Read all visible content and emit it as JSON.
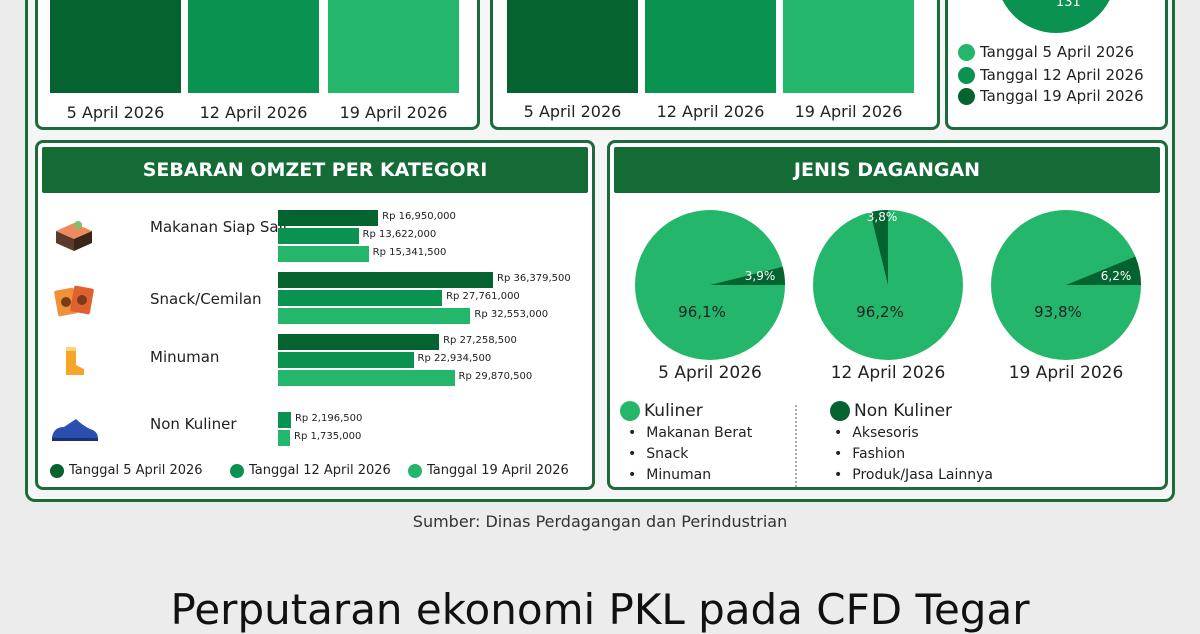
{
  "colors": {
    "dark": "#05632f",
    "mid": "#0a9350",
    "light": "#24b76b",
    "header": "#146b35"
  },
  "top_left_chart": {
    "labels": [
      "5 April 2026",
      "12 April 2026",
      "19 April 2026"
    ]
  },
  "top_mid_chart": {
    "labels": [
      "5 April 2026",
      "12 April 2026",
      "19 April 2026"
    ]
  },
  "top_right_chart": {
    "visible_value": "131",
    "legend": [
      "Tanggal 5 April 2026",
      "Tanggal 12 April 2026",
      "Tanggal 19 April 2026"
    ]
  },
  "chart_data": [
    {
      "type": "bar",
      "orientation": "horizontal",
      "title": "SEBARAN OMZET PER KATEGORI",
      "categories": [
        "Makanan Siap Saji",
        "Snack/Cemilan",
        "Minuman",
        "Non Kuliner"
      ],
      "series": [
        {
          "name": "Tanggal 5 April 2026",
          "values": [
            16950000,
            36379500,
            27258500,
            2196500
          ],
          "labels": [
            "Rp 16,950,000",
            "Rp 36,379,500",
            "Rp 27,258,500",
            "Rp 2,196,500"
          ]
        },
        {
          "name": "Tanggal 12 April 2026",
          "values": [
            13622000,
            27761000,
            22934500,
            1735000
          ],
          "labels": [
            "Rp 13,622,000",
            "Rp 27,761,000",
            "Rp 22,934,500",
            "Rp 1,735,000"
          ]
        },
        {
          "name": "Tanggal 19 April 2026",
          "values": [
            15341500,
            32553000,
            29870500,
            null
          ],
          "labels": [
            "Rp 15,341,500",
            "Rp 32,553,000",
            "Rp 29,870,500",
            null
          ]
        }
      ],
      "legend": [
        "Tanggal 5 April 2026",
        "Tanggal 12 April 2026",
        "Tanggal 19 April 2026"
      ]
    },
    {
      "type": "pie",
      "title": "JENIS DAGANGAN",
      "pies": [
        {
          "label": "5 April 2026",
          "kuliner": 96.1,
          "non_kuliner": 3.9,
          "kuliner_label": "96,1%",
          "non_kuliner_label": "3,9%"
        },
        {
          "label": "12 April 2026",
          "kuliner": 96.2,
          "non_kuliner": 3.8,
          "kuliner_label": "96,2%",
          "non_kuliner_label": "3,8%"
        },
        {
          "label": "19 April 2026",
          "kuliner": 93.8,
          "non_kuliner": 6.2,
          "kuliner_label": "93,8%",
          "non_kuliner_label": "6,2%"
        }
      ],
      "legend": {
        "kuliner": {
          "title": "Kuliner",
          "items": [
            "Makanan Berat",
            "Snack",
            "Minuman"
          ]
        },
        "non_kuliner": {
          "title": "Non Kuliner",
          "items": [
            "Aksesoris",
            "Fashion",
            "Produk/Jasa Lainnya"
          ]
        }
      }
    }
  ],
  "source": "Sumber: Dinas Perdagangan dan Perindustrian",
  "headline": "Perputaran ekonomi PKL pada CFD Tegar"
}
